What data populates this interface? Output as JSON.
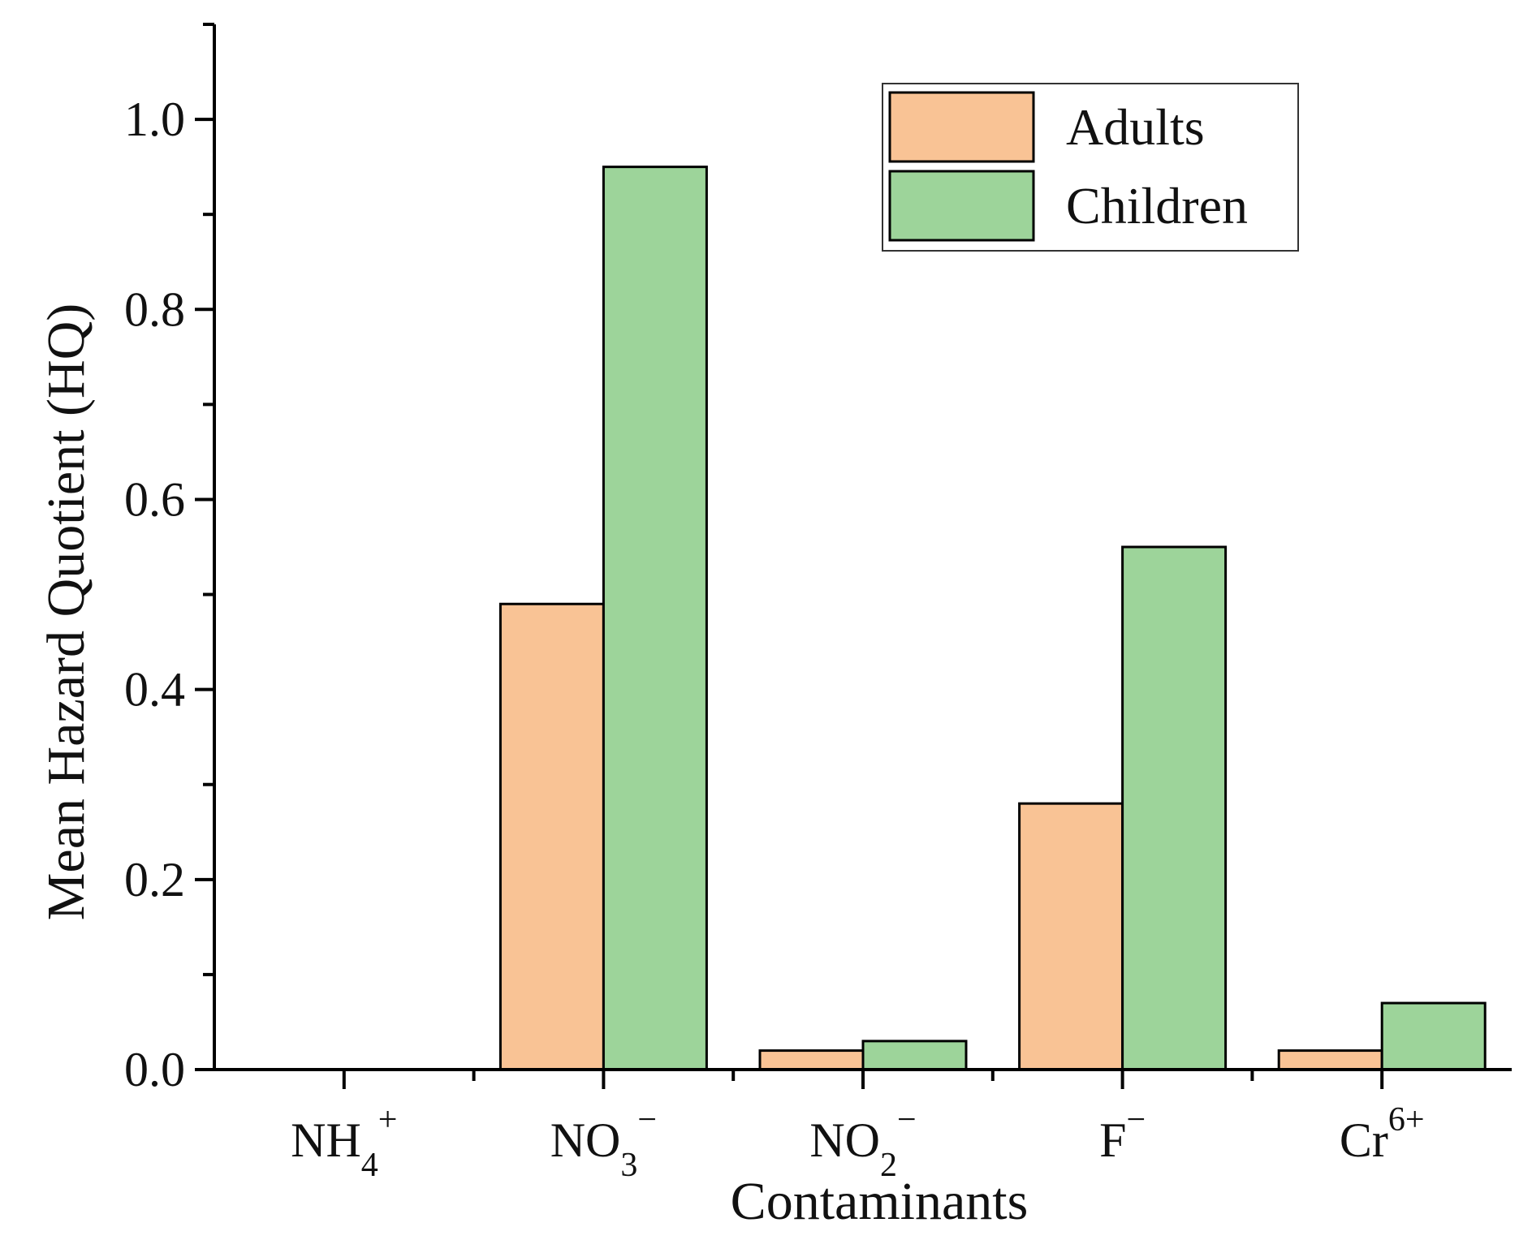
{
  "chart_data": {
    "type": "bar",
    "title": "",
    "xlabel": "Contaminants",
    "ylabel": "Mean Hazard Quotient (HQ)",
    "ylim": [
      0,
      1.1
    ],
    "yticks": [
      0.0,
      0.2,
      0.4,
      0.6,
      0.8,
      1.0
    ],
    "ytick_labels": [
      "0.0",
      "0.2",
      "0.4",
      "0.6",
      "0.8",
      "1.0"
    ],
    "categories": [
      {
        "base": "NH",
        "sub": "4",
        "sup": "+"
      },
      {
        "base": "NO",
        "sub": "3",
        "sup": "−"
      },
      {
        "base": "NO",
        "sub": "2",
        "sup": "−"
      },
      {
        "base": "F",
        "sub": "",
        "sup": "−"
      },
      {
        "base": "Cr",
        "sub": "",
        "sup": "6+"
      }
    ],
    "series": [
      {
        "name": "Adults",
        "color": "#F9C395",
        "values": [
          0.0,
          0.49,
          0.02,
          0.28,
          0.02
        ]
      },
      {
        "name": "Children",
        "color": "#9DD49A",
        "values": [
          0.0,
          0.95,
          0.03,
          0.55,
          0.07
        ]
      }
    ],
    "legend": {
      "position": "top-right",
      "entries": [
        "Adults",
        "Children"
      ]
    },
    "grid": false
  }
}
